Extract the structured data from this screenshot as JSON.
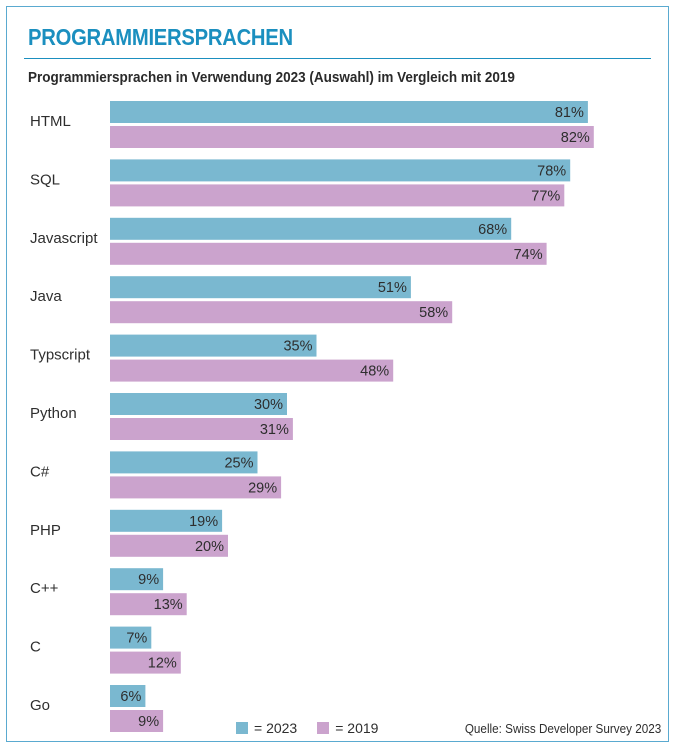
{
  "header": {
    "title": "PROGRAMMIERSPRACHEN",
    "subtitle": "Programmiersprachen in Verwendung 2023 (Auswahl) im Vergleich mit 2019"
  },
  "legend": {
    "items": [
      {
        "label": "= 2023",
        "color": "#7ab8d0"
      },
      {
        "label": "= 2019",
        "color": "#cba3cd"
      }
    ]
  },
  "source": "Quelle: Swiss Developer Survey 2023",
  "chart_data": {
    "type": "bar",
    "orientation": "horizontal",
    "title": "Programmiersprachen in Verwendung 2023 (Auswahl) im Vergleich mit 2019",
    "categories": [
      "HTML",
      "SQL",
      "Javascript",
      "Java",
      "Typscript",
      "Python",
      "C#",
      "PHP",
      "C++",
      "C",
      "Go"
    ],
    "series": [
      {
        "name": "2023",
        "color": "#7ab8d0",
        "values": [
          81,
          78,
          68,
          51,
          35,
          30,
          25,
          19,
          9,
          7,
          6
        ]
      },
      {
        "name": "2019",
        "color": "#cba3cd",
        "values": [
          82,
          77,
          74,
          58,
          48,
          31,
          29,
          20,
          13,
          12,
          9
        ]
      }
    ],
    "value_suffix": "%",
    "xlim": [
      0,
      100
    ],
    "grid": false,
    "legend_position": "bottom"
  }
}
